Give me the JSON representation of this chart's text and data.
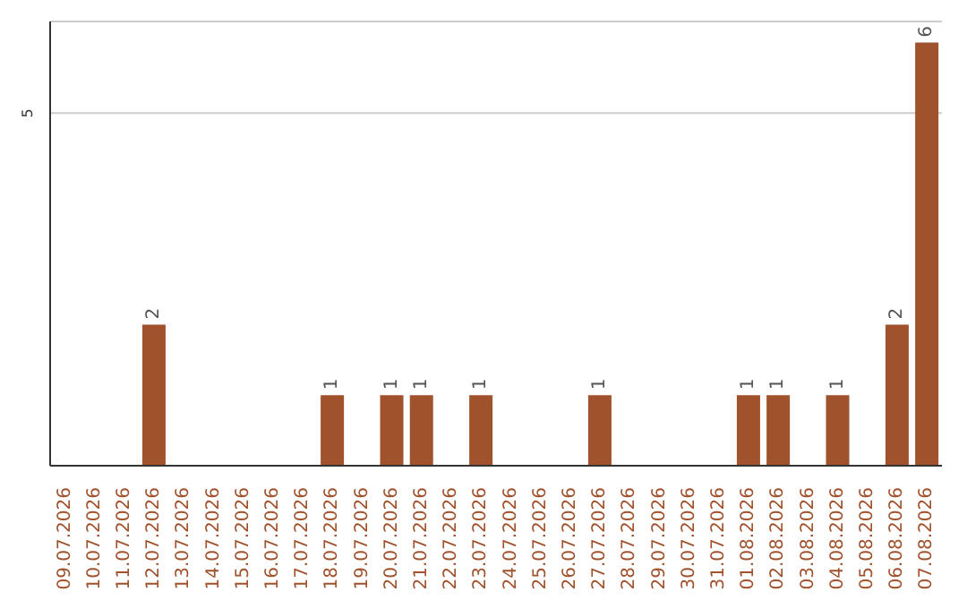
{
  "chart_data": {
    "type": "bar",
    "categories": [
      "09.07.2026",
      "10.07.2026",
      "11.07.2026",
      "12.07.2026",
      "13.07.2026",
      "14.07.2026",
      "15.07.2026",
      "16.07.2026",
      "17.07.2026",
      "18.07.2026",
      "19.07.2026",
      "20.07.2026",
      "21.07.2026",
      "22.07.2026",
      "23.07.2026",
      "24.07.2026",
      "25.07.2026",
      "26.07.2026",
      "27.07.2026",
      "28.07.2026",
      "29.07.2026",
      "30.07.2026",
      "31.07.2026",
      "01.08.2026",
      "02.08.2026",
      "03.08.2026",
      "04.08.2026",
      "05.08.2026",
      "06.08.2026",
      "07.08.2026"
    ],
    "values": [
      0,
      0,
      0,
      2,
      0,
      0,
      0,
      0,
      0,
      1,
      0,
      1,
      1,
      0,
      1,
      0,
      0,
      0,
      1,
      0,
      0,
      0,
      0,
      1,
      1,
      0,
      1,
      0,
      2,
      6
    ],
    "value_labels": [
      null,
      null,
      null,
      "2",
      null,
      null,
      null,
      null,
      null,
      "1",
      null,
      "1",
      "1",
      null,
      "1",
      null,
      null,
      null,
      "1",
      null,
      null,
      null,
      null,
      "1",
      "1",
      null,
      "1",
      null,
      "2",
      "6"
    ],
    "color": "#a0522d",
    "ylim": [
      0,
      6.3
    ],
    "yticks": [
      5
    ],
    "grid": "y"
  }
}
